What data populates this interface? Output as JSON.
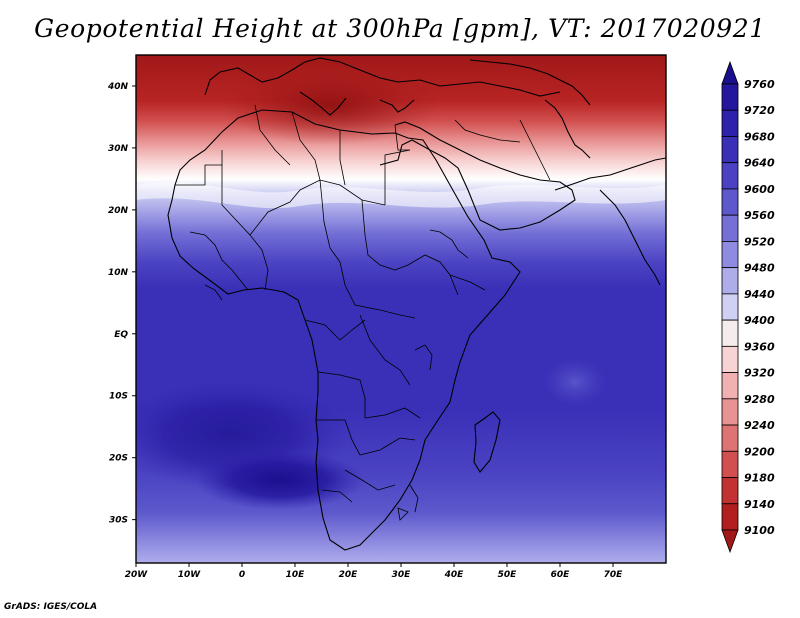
{
  "title": "Geopotential Height at 300hPa [gpm], VT: 2017020921",
  "footer": "GrADS: IGES/COLA",
  "map": {
    "lat_ticks": [
      "40N",
      "30N",
      "20N",
      "10N",
      "EQ",
      "10S",
      "20S",
      "30S"
    ],
    "lat_values": [
      40,
      30,
      20,
      10,
      0,
      -10,
      -20,
      -30
    ],
    "lon_ticks": [
      "20W",
      "10W",
      "0",
      "10E",
      "20E",
      "30E",
      "40E",
      "50E",
      "60E",
      "70E"
    ],
    "lon_values": [
      -20,
      -10,
      0,
      10,
      20,
      30,
      40,
      50,
      60,
      70
    ],
    "lon_range": [
      -20,
      80
    ],
    "lat_range": [
      -37,
      45
    ]
  },
  "colorbar": {
    "levels": [
      "9760",
      "9720",
      "9680",
      "9640",
      "9600",
      "9560",
      "9520",
      "9480",
      "9440",
      "9400",
      "9360",
      "9320",
      "9280",
      "9240",
      "9200",
      "9180",
      "9140",
      "9100"
    ],
    "colors": [
      "#1a0f8c",
      "#24179e",
      "#2e22ad",
      "#3a30b8",
      "#4a42c2",
      "#5d58cc",
      "#7470d6",
      "#8e8be0",
      "#aeadea",
      "#d0d0f4",
      "#f5eded",
      "#f8d3d3",
      "#f1b1b1",
      "#e89393",
      "#de7373",
      "#d14f4f",
      "#c33232",
      "#b21f1f",
      "#a01818"
    ]
  }
}
